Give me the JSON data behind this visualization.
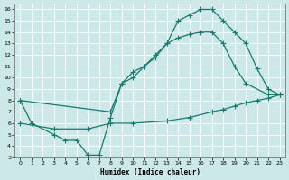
{
  "xlabel": "Humidex (Indice chaleur)",
  "bg_color": "#cce8e8",
  "grid_color": "#b0d8d8",
  "line_color": "#1a7a6e",
  "xlim": [
    -0.5,
    23.5
  ],
  "ylim": [
    3,
    16.5
  ],
  "xticks": [
    0,
    1,
    2,
    3,
    4,
    5,
    6,
    7,
    8,
    9,
    10,
    11,
    12,
    13,
    14,
    15,
    16,
    17,
    18,
    19,
    20,
    21,
    22,
    23
  ],
  "yticks": [
    3,
    4,
    5,
    6,
    7,
    8,
    9,
    10,
    11,
    12,
    13,
    14,
    15,
    16
  ],
  "curve1_x": [
    0,
    1,
    3,
    4,
    5,
    6,
    7,
    8,
    9,
    10,
    11,
    12,
    13,
    14,
    15,
    16,
    17,
    18,
    19,
    20,
    21,
    22,
    23
  ],
  "curve1_y": [
    8,
    6,
    5,
    4.5,
    4.5,
    3.2,
    3.2,
    6.5,
    9.5,
    10.5,
    11,
    11.8,
    13,
    15,
    15.5,
    16,
    16,
    15,
    14,
    13,
    10.8,
    9,
    8.5
  ],
  "curve2_x": [
    0,
    8,
    9,
    10,
    11,
    12,
    13,
    14,
    15,
    16,
    17,
    18,
    19,
    20,
    22,
    23
  ],
  "curve2_y": [
    8,
    7,
    9.5,
    10,
    11,
    12,
    13,
    13.5,
    13.8,
    14,
    14,
    13,
    11,
    9.5,
    8.5,
    8.5
  ],
  "curve3_x": [
    0,
    3,
    6,
    8,
    10,
    13,
    15,
    17,
    18,
    19,
    20,
    21,
    22,
    23
  ],
  "curve3_y": [
    6,
    5.5,
    5.5,
    6,
    6,
    6.2,
    6.5,
    7,
    7.2,
    7.5,
    7.8,
    8,
    8.2,
    8.5
  ]
}
